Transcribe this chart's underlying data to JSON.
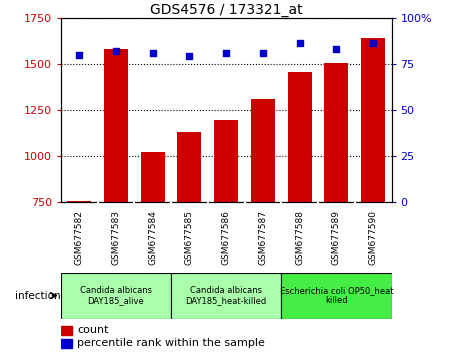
{
  "title": "GDS4576 / 173321_at",
  "categories": [
    "GSM677582",
    "GSM677583",
    "GSM677584",
    "GSM677585",
    "GSM677586",
    "GSM677587",
    "GSM677588",
    "GSM677589",
    "GSM677590"
  ],
  "counts": [
    755,
    1580,
    1020,
    1130,
    1195,
    1310,
    1455,
    1505,
    1640
  ],
  "percentile_ranks": [
    80,
    82,
    81,
    79,
    81,
    81,
    86,
    83,
    86
  ],
  "ylim_left": [
    750,
    1750
  ],
  "ylim_right": [
    0,
    100
  ],
  "yticks_left": [
    750,
    1000,
    1250,
    1500,
    1750
  ],
  "yticks_right": [
    0,
    25,
    50,
    75,
    100
  ],
  "bar_color": "#cc0000",
  "dot_color": "#0000cc",
  "bar_bottom": 750,
  "groups": [
    {
      "label": "Candida albicans\nDAY185_alive",
      "start": 0,
      "end": 3,
      "color": "#aaffaa"
    },
    {
      "label": "Candida albicans\nDAY185_heat-killed",
      "start": 3,
      "end": 6,
      "color": "#aaffaa"
    },
    {
      "label": "Escherichia coli OP50_heat\nkilled",
      "start": 6,
      "end": 9,
      "color": "#44ee44"
    }
  ],
  "infection_label": "infection",
  "legend_count_label": "count",
  "legend_pct_label": "percentile rank within the sample",
  "tick_label_color_left": "#cc0000",
  "tick_label_color_right": "#0000cc",
  "sample_bg_color": "#c8c8c8",
  "sample_text_fontsize": 6.5,
  "group_text_fontsize": 6.0,
  "title_fontsize": 10
}
